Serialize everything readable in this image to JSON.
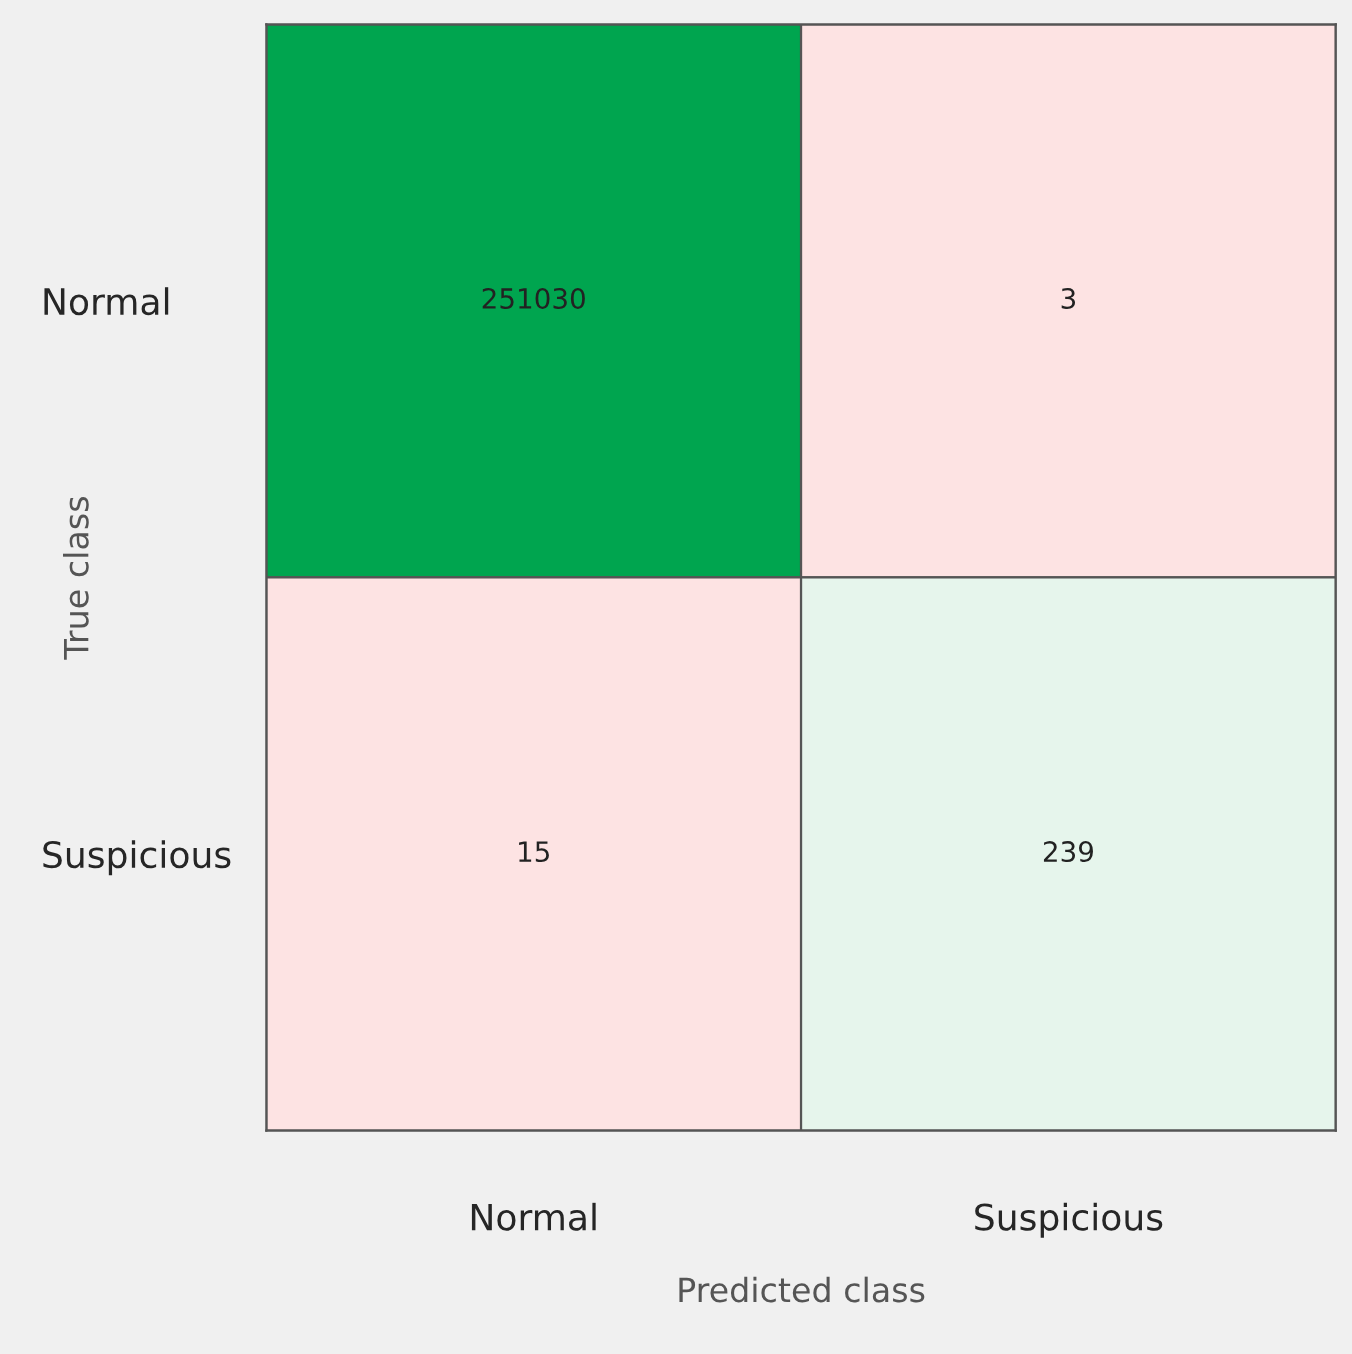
{
  "chart_data": {
    "type": "heatmap",
    "xlabel": "Predicted class",
    "ylabel": "True class",
    "categories": [
      "Normal",
      "Suspicious"
    ],
    "y_categories": [
      "Normal",
      "Suspicious"
    ],
    "cells": [
      [
        251030,
        3
      ],
      [
        15,
        239
      ]
    ],
    "colors": [
      "#00a54f",
      "#fde3e3",
      "#fde3e3",
      "#e6f5ec"
    ],
    "data_labels": true
  }
}
